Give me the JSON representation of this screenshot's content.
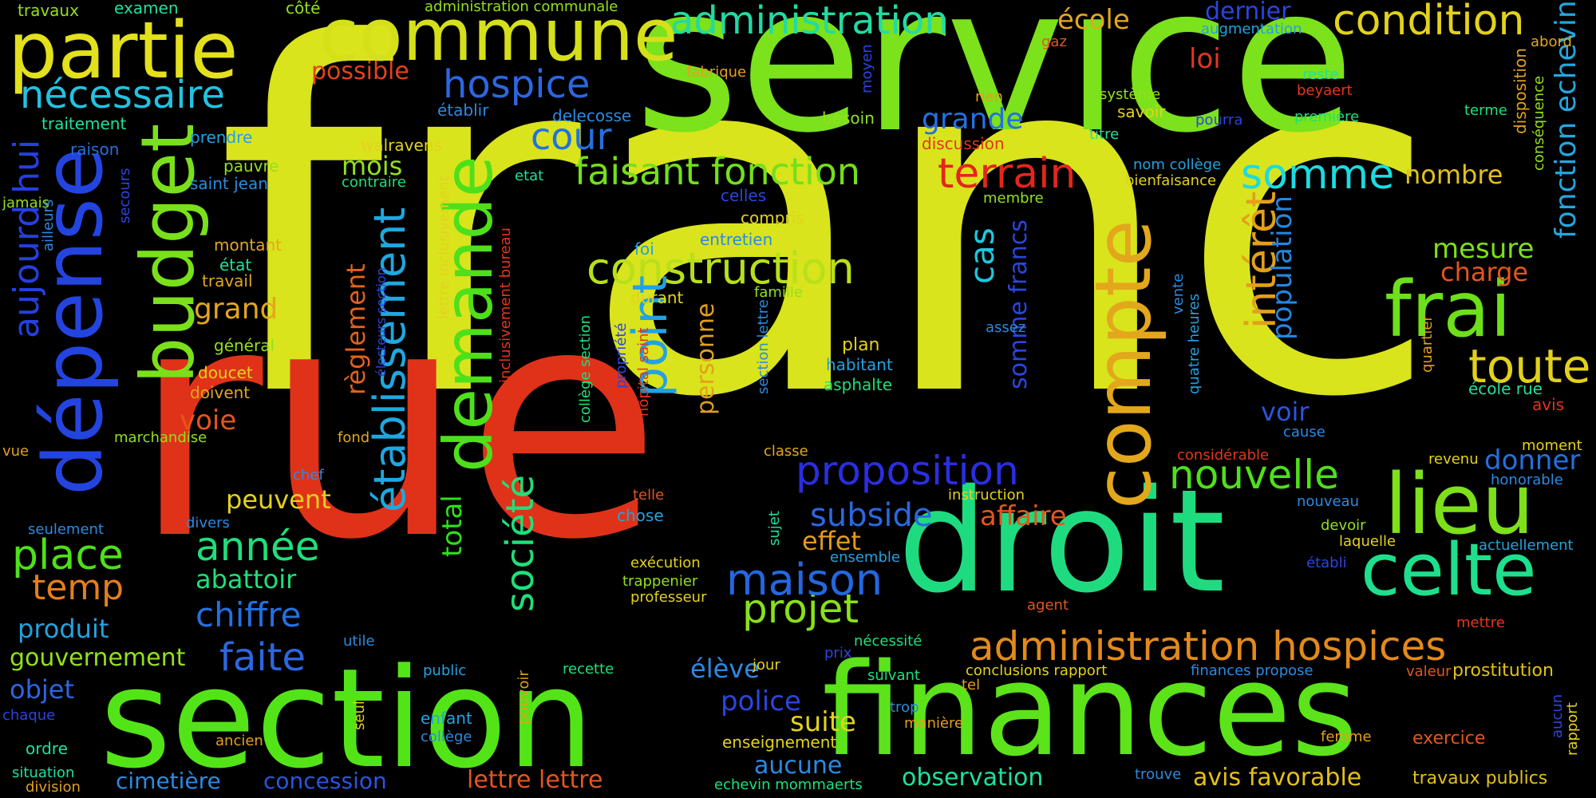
{
  "background_color": "#000000",
  "words": [
    {
      "text": "franc",
      "color": "#d9e41c"
    },
    {
      "text": "service",
      "color": "#7be21b"
    },
    {
      "text": "rue",
      "color": "#e03219"
    },
    {
      "text": "section",
      "color": "#53e418"
    },
    {
      "text": "finances",
      "color": "#5ce31a"
    },
    {
      "text": "droit",
      "color": "#1fdb80"
    },
    {
      "text": "commune",
      "color": "#d5e01b"
    },
    {
      "text": "partie",
      "color": "#e3e01c"
    },
    {
      "text": "dépense",
      "color": "#2444e0"
    },
    {
      "text": "compte",
      "color": "#e3a71c"
    },
    {
      "text": "budget",
      "color": "#7ae01b"
    },
    {
      "text": "demande",
      "color": "#4ee01a"
    },
    {
      "text": "frai",
      "color": "#6ce01a"
    },
    {
      "text": "lieu",
      "color": "#7de01b"
    },
    {
      "text": "celte",
      "color": "#1ee08c"
    },
    {
      "text": "établissement",
      "color": "#1ea8e0"
    },
    {
      "text": "aujourd hui",
      "color": "#2440e0"
    },
    {
      "text": "administration",
      "color": "#22dba3"
    },
    {
      "text": "condition",
      "color": "#e3d21c"
    },
    {
      "text": "construction",
      "color": "#b7e01b"
    },
    {
      "text": "proposition",
      "color": "#2a2ee0"
    },
    {
      "text": "administration hospices",
      "color": "#e38a1c"
    },
    {
      "text": "nécessaire",
      "color": "#23c2e0"
    },
    {
      "text": "hospice",
      "color": "#2b67e0"
    },
    {
      "text": "faisant fonction",
      "color": "#73e01b"
    },
    {
      "text": "terrain",
      "color": "#e3261c"
    },
    {
      "text": "somme",
      "color": "#1cdbe0"
    },
    {
      "text": "cour",
      "color": "#2470e0"
    },
    {
      "text": "point",
      "color": "#23a2e0"
    },
    {
      "text": "société",
      "color": "#1ee07a"
    },
    {
      "text": "toute",
      "color": "#e3d01c"
    },
    {
      "text": "nouvelle",
      "color": "#4ee01a"
    },
    {
      "text": "intérêt",
      "color": "#e3a01c"
    },
    {
      "text": "projet",
      "color": "#89e01b"
    },
    {
      "text": "maison",
      "color": "#2467e0"
    },
    {
      "text": "place",
      "color": "#4ee01a"
    },
    {
      "text": "année",
      "color": "#1ee07a"
    },
    {
      "text": "chiffre",
      "color": "#2470e0"
    },
    {
      "text": "faite",
      "color": "#2b67e0"
    },
    {
      "text": "temp",
      "color": "#e37f1c"
    },
    {
      "text": "cas",
      "color": "#1ec8e0"
    },
    {
      "text": "population",
      "color": "#2487e0"
    },
    {
      "text": "fonction echevin",
      "color": "#23a7e0"
    },
    {
      "text": "mesure",
      "color": "#7de01b"
    },
    {
      "text": "charge",
      "color": "#e3561c"
    },
    {
      "text": "donner",
      "color": "#2470e0"
    },
    {
      "text": "école",
      "color": "#e3a71c"
    },
    {
      "text": "dernier",
      "color": "#2b45e0"
    },
    {
      "text": "loi",
      "color": "#e3361c"
    },
    {
      "text": "possible",
      "color": "#e3421c"
    },
    {
      "text": "grande",
      "color": "#2470e0"
    },
    {
      "text": "mois",
      "color": "#93e01b"
    },
    {
      "text": "grand",
      "color": "#e3a71c"
    },
    {
      "text": "règlement",
      "color": "#e3621c"
    },
    {
      "text": "voie",
      "color": "#e3561c"
    },
    {
      "text": "peuvent",
      "color": "#e3d21c"
    },
    {
      "text": "abattoir",
      "color": "#1ee07a"
    },
    {
      "text": "produit",
      "color": "#23a2e0"
    },
    {
      "text": "gouvernement",
      "color": "#93e01b"
    },
    {
      "text": "objet",
      "color": "#2b67e0"
    },
    {
      "text": "subside",
      "color": "#2b67e0"
    },
    {
      "text": "affaire",
      "color": "#e3561c"
    },
    {
      "text": "effet",
      "color": "#e39a1c"
    },
    {
      "text": "total",
      "color": "#2ee01a"
    },
    {
      "text": "nombre",
      "color": "#e3c01c"
    },
    {
      "text": "voir",
      "color": "#2b55e0"
    },
    {
      "text": "personne",
      "color": "#e3a01c"
    },
    {
      "text": "somme francs",
      "color": "#2b45e0"
    },
    {
      "text": "police",
      "color": "#2b45e0"
    },
    {
      "text": "suite",
      "color": "#e3d21c"
    },
    {
      "text": "élève",
      "color": "#2b8ae0"
    },
    {
      "text": "aucune",
      "color": "#2b8ae0"
    },
    {
      "text": "cimetière",
      "color": "#2b8ae0"
    },
    {
      "text": "concession",
      "color": "#2b55e0"
    },
    {
      "text": "lettre lettre",
      "color": "#e3561c"
    },
    {
      "text": "observation",
      "color": "#1ee0a0"
    },
    {
      "text": "avis favorable",
      "color": "#e3c01c"
    },
    {
      "text": "travaux publics",
      "color": "#e3c01c"
    },
    {
      "text": "prostitution",
      "color": "#e3c01c"
    },
    {
      "text": "exercice",
      "color": "#e3561c"
    },
    {
      "text": "travaux",
      "color": "#93e01b"
    },
    {
      "text": "examen",
      "color": "#1ee0a0"
    },
    {
      "text": "côté",
      "color": "#93e01b"
    },
    {
      "text": "administration communale",
      "color": "#93e01b"
    },
    {
      "text": "augmentation",
      "color": "#23a2e0"
    },
    {
      "text": "gaz",
      "color": "#e3561c"
    },
    {
      "text": "fabrique",
      "color": "#e3a01c"
    },
    {
      "text": "moyen",
      "color": "#2b45e0"
    },
    {
      "text": "reste",
      "color": "#1ee0a0"
    },
    {
      "text": "beyaert",
      "color": "#e3361c"
    },
    {
      "text": "abord",
      "color": "#e3a71c"
    },
    {
      "text": "disposition",
      "color": "#e3a01c"
    },
    {
      "text": "conséquence",
      "color": "#93e01b"
    },
    {
      "text": "traitement",
      "color": "#1ee0a0"
    },
    {
      "text": "prendre",
      "color": "#23a2e0"
    },
    {
      "text": "raison",
      "color": "#2470e0"
    },
    {
      "text": "walravens",
      "color": "#e3d21c"
    },
    {
      "text": "établir",
      "color": "#2b8ae0"
    },
    {
      "text": "delecosse",
      "color": "#2b8ae0"
    },
    {
      "text": "rien",
      "color": "#e3a01c"
    },
    {
      "text": "système",
      "color": "#93e01b"
    },
    {
      "text": "savoir",
      "color": "#e3d21c"
    },
    {
      "text": "pourra",
      "color": "#2b45e0"
    },
    {
      "text": "première",
      "color": "#1ee07a"
    },
    {
      "text": "terme",
      "color": "#1ee07a"
    },
    {
      "text": "besoin",
      "color": "#93e01b"
    },
    {
      "text": "discussion",
      "color": "#e3361c"
    },
    {
      "text": "titre",
      "color": "#1ee0a0"
    },
    {
      "text": "pauvre",
      "color": "#93e01b"
    },
    {
      "text": "saint jean",
      "color": "#2b8ae0"
    },
    {
      "text": "secours",
      "color": "#2b45e0"
    },
    {
      "text": "contraire",
      "color": "#1ee07a"
    },
    {
      "text": "etat",
      "color": "#1ee0a0"
    },
    {
      "text": "nom collège",
      "color": "#23a2e0"
    },
    {
      "text": "bienfaisance",
      "color": "#e3d21c"
    },
    {
      "text": "celles",
      "color": "#2b45e0"
    },
    {
      "text": "membre",
      "color": "#93e01b"
    },
    {
      "text": "jamais",
      "color": "#93e01b"
    },
    {
      "text": "ailleurs",
      "color": "#2b8ae0"
    },
    {
      "text": "montant",
      "color": "#e3a71c"
    },
    {
      "text": "état",
      "color": "#1ee0a0"
    },
    {
      "text": "travail",
      "color": "#e3a71c"
    },
    {
      "text": "compris",
      "color": "#e3d21c"
    },
    {
      "text": "foi",
      "color": "#23a2e0"
    },
    {
      "text": "entretien",
      "color": "#2b8ae0"
    },
    {
      "text": "durant",
      "color": "#e3d21c"
    },
    {
      "text": "famille",
      "color": "#93e01b"
    },
    {
      "text": "vente",
      "color": "#2b8ae0"
    },
    {
      "text": "quatre heures",
      "color": "#23a2e0"
    },
    {
      "text": "quartier",
      "color": "#e3a01c"
    },
    {
      "text": "école rue",
      "color": "#1ee0a0"
    },
    {
      "text": "avis",
      "color": "#e3361c"
    },
    {
      "text": "plan",
      "color": "#e3d21c"
    },
    {
      "text": "assez",
      "color": "#2b8ae0"
    },
    {
      "text": "habitant",
      "color": "#23a2e0"
    },
    {
      "text": "asphalte",
      "color": "#1ee07a"
    },
    {
      "text": "général",
      "color": "#93e01b"
    },
    {
      "text": "doucet",
      "color": "#e3d21c"
    },
    {
      "text": "doivent",
      "color": "#e3a71c"
    },
    {
      "text": "marchandise",
      "color": "#93e01b"
    },
    {
      "text": "fond",
      "color": "#e3a71c"
    },
    {
      "text": "vue",
      "color": "#e3a01c"
    },
    {
      "text": "classe",
      "color": "#e3a71c"
    },
    {
      "text": "cause",
      "color": "#2b8ae0"
    },
    {
      "text": "moment",
      "color": "#e3d21c"
    },
    {
      "text": "honorable",
      "color": "#2b8ae0"
    },
    {
      "text": "revenu",
      "color": "#e3d21c"
    },
    {
      "text": "considérable",
      "color": "#e3361c"
    },
    {
      "text": "chef",
      "color": "#2b8ae0"
    },
    {
      "text": "seulement",
      "color": "#2b8ae0"
    },
    {
      "text": "divers",
      "color": "#2b8ae0"
    },
    {
      "text": "telle",
      "color": "#e3561c"
    },
    {
      "text": "chose",
      "color": "#23a2e0"
    },
    {
      "text": "sujet",
      "color": "#1ee0a0"
    },
    {
      "text": "instruction",
      "color": "#e3d21c"
    },
    {
      "text": "ensemble",
      "color": "#23a2e0"
    },
    {
      "text": "nouveau",
      "color": "#2b8ae0"
    },
    {
      "text": "devoir",
      "color": "#93e01b"
    },
    {
      "text": "laquelle",
      "color": "#e3d21c"
    },
    {
      "text": "actuellement",
      "color": "#23a2e0"
    },
    {
      "text": "établi",
      "color": "#2b45e0"
    },
    {
      "text": "exécution",
      "color": "#e3d21c"
    },
    {
      "text": "trappenier",
      "color": "#93e01b"
    },
    {
      "text": "professeur",
      "color": "#e3d21c"
    },
    {
      "text": "agent",
      "color": "#e3561c"
    },
    {
      "text": "mettre",
      "color": "#e3361c"
    },
    {
      "text": "utile",
      "color": "#2b8ae0"
    },
    {
      "text": "prix",
      "color": "#2b45e0"
    },
    {
      "text": "nécessité",
      "color": "#1ee07a"
    },
    {
      "text": "public",
      "color": "#23a2e0"
    },
    {
      "text": "recette",
      "color": "#1ee07a"
    },
    {
      "text": "jour",
      "color": "#e3d21c"
    },
    {
      "text": "conclusions rapport",
      "color": "#e3d21c"
    },
    {
      "text": "suivant",
      "color": "#1ee07a"
    },
    {
      "text": "tel",
      "color": "#e3a01c"
    },
    {
      "text": "finances propose",
      "color": "#2b8ae0"
    },
    {
      "text": "valeur",
      "color": "#e3561c"
    },
    {
      "text": "aucun",
      "color": "#2b45e0"
    },
    {
      "text": "rapport",
      "color": "#e3d21c"
    },
    {
      "text": "trop",
      "color": "#2b8ae0"
    },
    {
      "text": "manière",
      "color": "#e3a01c"
    },
    {
      "text": "enseignement",
      "color": "#e3d21c"
    },
    {
      "text": "femme",
      "color": "#e3a01c"
    },
    {
      "text": "chaque",
      "color": "#2b45e0"
    },
    {
      "text": "ordre",
      "color": "#1ee0a0"
    },
    {
      "text": "situation",
      "color": "#1ee0a0"
    },
    {
      "text": "division",
      "color": "#e3a01c"
    },
    {
      "text": "ancien",
      "color": "#e3a01c"
    },
    {
      "text": "seul",
      "color": "#e3d21c"
    },
    {
      "text": "enfant",
      "color": "#23a2e0"
    },
    {
      "text": "collège",
      "color": "#2b8ae0"
    },
    {
      "text": "pouvoir",
      "color": "#e3a01c"
    },
    {
      "text": "echevin mommaerts",
      "color": "#1ee07a"
    },
    {
      "text": "trouve",
      "color": "#2b8ae0"
    },
    {
      "text": "lettre inclusivement",
      "color": "#e3d21c"
    },
    {
      "text": "inclusivement bureau",
      "color": "#e3361c"
    },
    {
      "text": "électeurs section",
      "color": "#2b45e0"
    },
    {
      "text": "collège section",
      "color": "#1ee07a"
    },
    {
      "text": "propriété",
      "color": "#2b45e0"
    },
    {
      "text": "hôpital saint",
      "color": "#e3361c"
    },
    {
      "text": "section lettre",
      "color": "#2b8ae0"
    }
  ]
}
